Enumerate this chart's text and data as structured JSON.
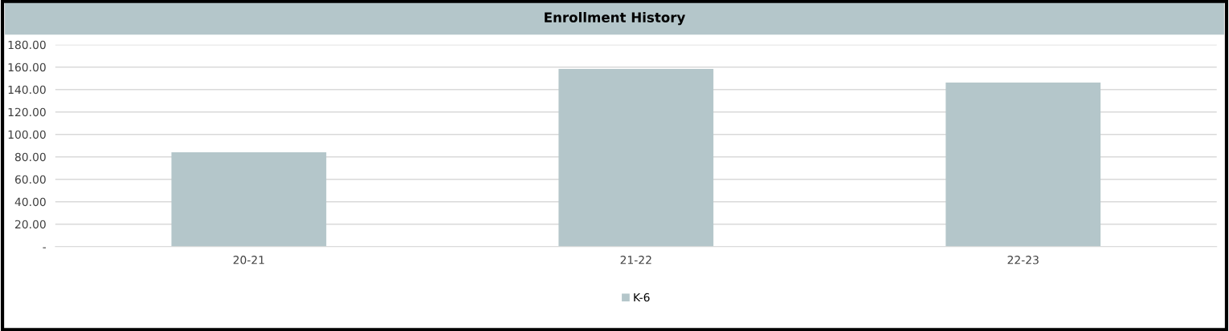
{
  "chart_data": {
    "type": "bar",
    "title": "Enrollment History",
    "categories": [
      "20-21",
      "21-22",
      "22-23"
    ],
    "series": [
      {
        "name": "K-6",
        "color": "#b4c6ca",
        "values": [
          84,
          158.4,
          146.2
        ]
      }
    ],
    "ylim": [
      0,
      180
    ],
    "yticks": [
      {
        "value": 0,
        "label": "-"
      },
      {
        "value": 20,
        "label": "20.00"
      },
      {
        "value": 40,
        "label": "40.00"
      },
      {
        "value": 60,
        "label": "60.00"
      },
      {
        "value": 80,
        "label": "80.00"
      },
      {
        "value": 100,
        "label": "100.00"
      },
      {
        "value": 120,
        "label": "120.00"
      },
      {
        "value": 140,
        "label": "140.00"
      },
      {
        "value": 160,
        "label": "160.00"
      },
      {
        "value": 180,
        "label": "180.00"
      }
    ],
    "grid": "y",
    "legend": "bottom"
  }
}
